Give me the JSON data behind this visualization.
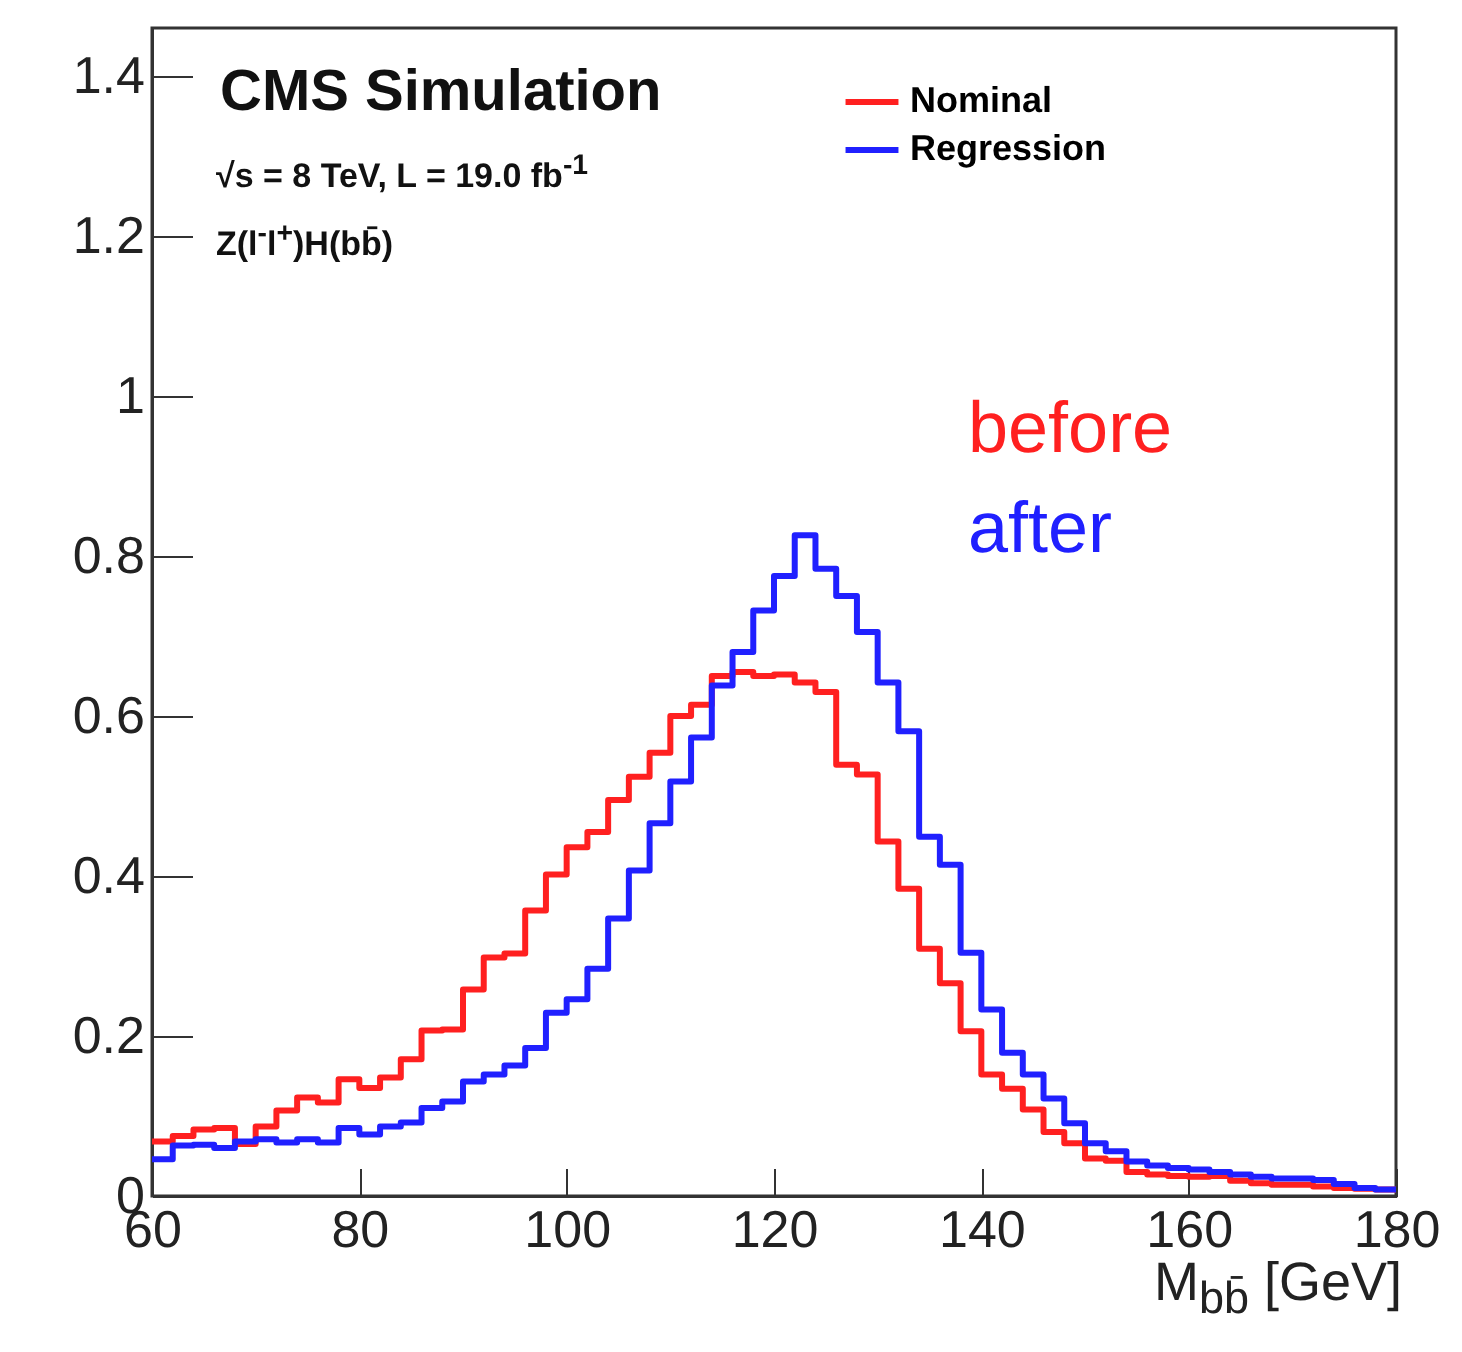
{
  "chart_data": {
    "type": "histogram",
    "xlabel": "M$_{bb̄}$ [GeV]",
    "bins": [
      60,
      62,
      64,
      66,
      68,
      70,
      72,
      74,
      76,
      78,
      80,
      82,
      84,
      86,
      88,
      90,
      92,
      94,
      96,
      98,
      100,
      102,
      104,
      106,
      108,
      110,
      112,
      114,
      116,
      118,
      120,
      122,
      124,
      126,
      128,
      130,
      132,
      134,
      136,
      138,
      140,
      142,
      144,
      146,
      148,
      150,
      152,
      154,
      156,
      158,
      160,
      162,
      164,
      166,
      168,
      170,
      172,
      174,
      176,
      178,
      180
    ],
    "series": [
      {
        "name": "Nominal",
        "color": "#ff2020",
        "values": [
          0.068,
          0.075,
          0.083,
          0.085,
          0.065,
          0.087,
          0.107,
          0.123,
          0.117,
          0.146,
          0.135,
          0.148,
          0.171,
          0.207,
          0.208,
          0.258,
          0.298,
          0.303,
          0.357,
          0.402,
          0.436,
          0.455,
          0.495,
          0.524,
          0.554,
          0.6,
          0.614,
          0.65,
          0.655,
          0.65,
          0.652,
          0.642,
          0.63,
          0.539,
          0.527,
          0.443,
          0.384,
          0.309,
          0.266,
          0.206,
          0.152,
          0.134,
          0.108,
          0.08,
          0.066,
          0.047,
          0.044,
          0.03,
          0.027,
          0.025,
          0.024,
          0.025,
          0.019,
          0.016,
          0.014,
          0.014,
          0.012,
          0.01,
          0.009,
          0.008
        ]
      },
      {
        "name": "Regression",
        "color": "#2020ff",
        "values": [
          0.046,
          0.063,
          0.064,
          0.06,
          0.068,
          0.071,
          0.067,
          0.071,
          0.067,
          0.085,
          0.077,
          0.087,
          0.092,
          0.11,
          0.118,
          0.143,
          0.152,
          0.163,
          0.185,
          0.229,
          0.246,
          0.284,
          0.347,
          0.407,
          0.466,
          0.518,
          0.573,
          0.638,
          0.68,
          0.732,
          0.775,
          0.826,
          0.784,
          0.75,
          0.705,
          0.642,
          0.581,
          0.449,
          0.414,
          0.304,
          0.233,
          0.179,
          0.152,
          0.122,
          0.091,
          0.066,
          0.056,
          0.043,
          0.038,
          0.035,
          0.033,
          0.03,
          0.027,
          0.024,
          0.022,
          0.022,
          0.02,
          0.015,
          0.01,
          0.008
        ]
      }
    ],
    "xlim": [
      60,
      180
    ],
    "xticks": [
      60,
      80,
      100,
      120,
      140,
      160,
      180
    ],
    "ylim": [
      0,
      1.46
    ],
    "yticks": [
      0,
      0.2,
      0.4,
      0.6,
      0.8,
      1,
      1.2,
      1.4
    ],
    "legend": "top right",
    "grid": false,
    "annotations": [
      {
        "text": "CMS Simulation"
      },
      {
        "text": "√s = 8 TeV, L = 19.0 fb$^{-1}$"
      },
      {
        "text": "Z(l$^{-}$l$^{+}$)H(bb̄)"
      },
      {
        "text": "before"
      },
      {
        "text": "after"
      }
    ]
  }
}
